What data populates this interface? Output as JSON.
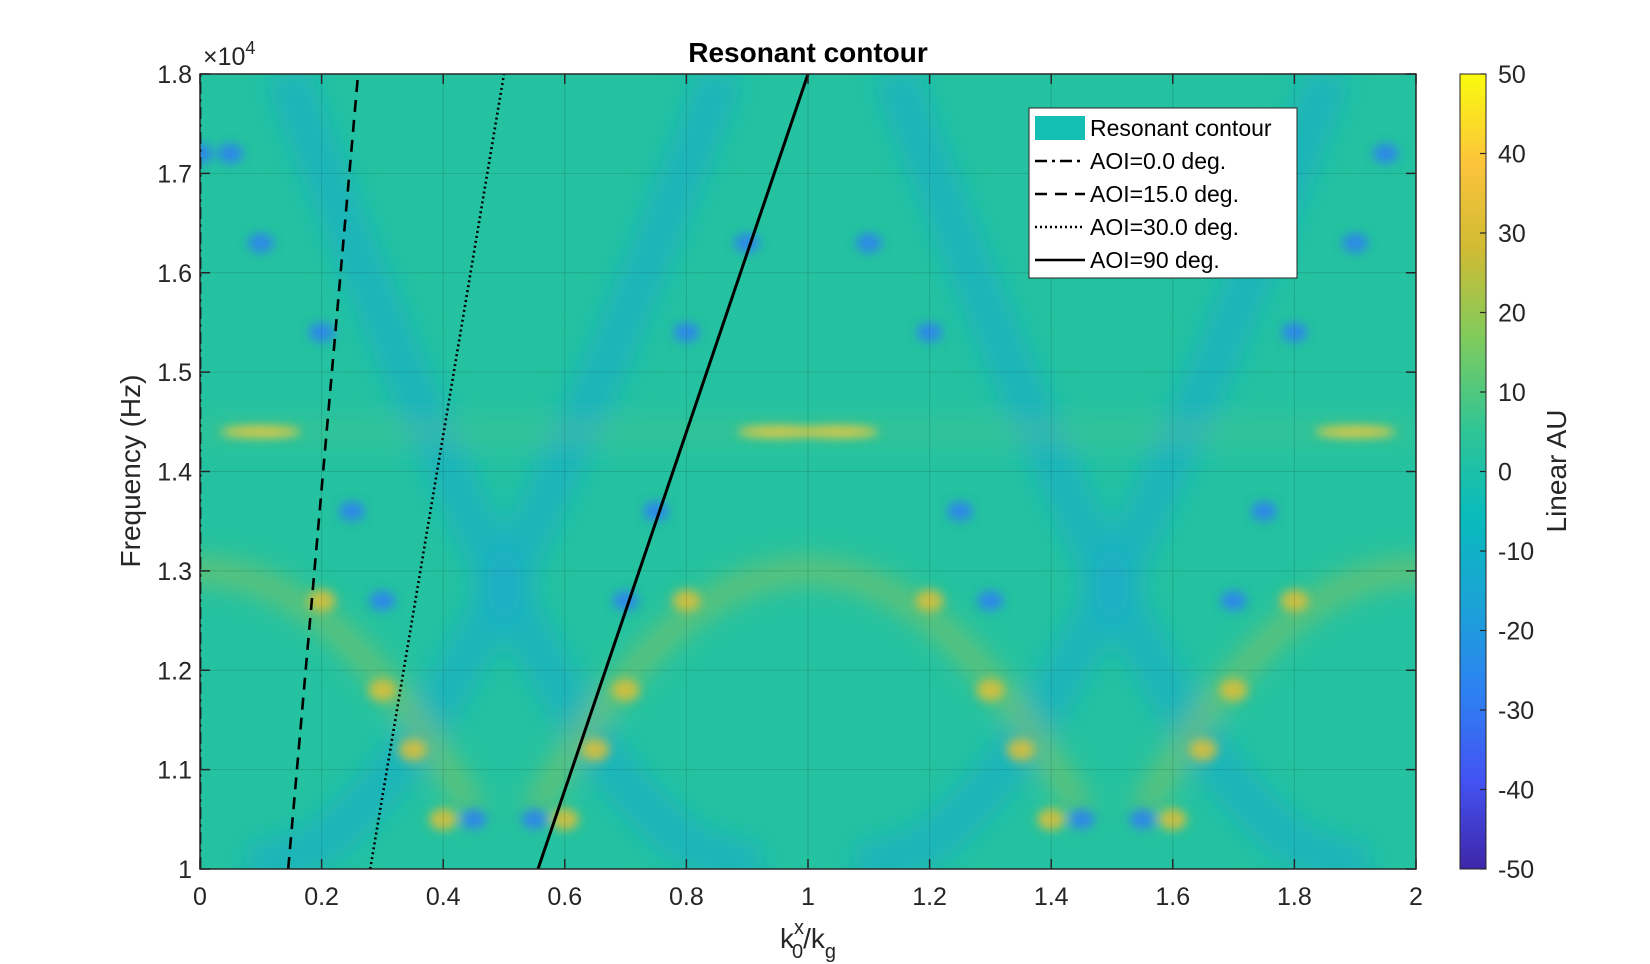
{
  "chart_data": {
    "type": "heatmap",
    "title": "Resonant contour",
    "xlabel": {
      "base": "k",
      "sub": "0",
      "sup": "x",
      "tail": "/k",
      "tail_sub": "g"
    },
    "ylabel": "Frequency (Hz)",
    "y_exponent_label": {
      "base": "×10",
      "sup": "4"
    },
    "xlim": [
      0,
      2
    ],
    "ylim": [
      10000,
      18000
    ],
    "x_ticks": [
      {
        "value": 0,
        "label": "0"
      },
      {
        "value": 0.2,
        "label": "0.2"
      },
      {
        "value": 0.4,
        "label": "0.4"
      },
      {
        "value": 0.6,
        "label": "0.6"
      },
      {
        "value": 0.8,
        "label": "0.8"
      },
      {
        "value": 1,
        "label": "1"
      },
      {
        "value": 1.2,
        "label": "1.2"
      },
      {
        "value": 1.4,
        "label": "1.4"
      },
      {
        "value": 1.6,
        "label": "1.6"
      },
      {
        "value": 1.8,
        "label": "1.8"
      },
      {
        "value": 2,
        "label": "2"
      }
    ],
    "y_ticks": [
      {
        "value": 10000,
        "label": "1"
      },
      {
        "value": 11000,
        "label": "1.1"
      },
      {
        "value": 12000,
        "label": "1.2"
      },
      {
        "value": 13000,
        "label": "1.3"
      },
      {
        "value": 14000,
        "label": "1.4"
      },
      {
        "value": 15000,
        "label": "1.5"
      },
      {
        "value": 16000,
        "label": "1.6"
      },
      {
        "value": 17000,
        "label": "1.7"
      },
      {
        "value": 18000,
        "label": "1.8"
      }
    ],
    "grid": true,
    "heatmap": {
      "background_value": 2,
      "band_period_x": 1,
      "band_cutoff_freq": 10000,
      "band_hump_peak_freq": 13000,
      "hot_line_freq": 14400
    },
    "colorbar": {
      "label": "Linear AU",
      "min": -50,
      "max": 50,
      "ticks": [
        {
          "value": 50,
          "label": "50"
        },
        {
          "value": 40,
          "label": "40"
        },
        {
          "value": 30,
          "label": "30"
        },
        {
          "value": 20,
          "label": "20"
        },
        {
          "value": 10,
          "label": "10"
        },
        {
          "value": 0,
          "label": "0"
        },
        {
          "value": -10,
          "label": "-10"
        },
        {
          "value": -20,
          "label": "-20"
        },
        {
          "value": -30,
          "label": "-30"
        },
        {
          "value": -40,
          "label": "-40"
        },
        {
          "value": -50,
          "label": "-50"
        }
      ],
      "colormap": [
        "#3e26a8",
        "#4353f2",
        "#2d81f2",
        "#1aa3d6",
        "#08bbbb",
        "#31c594",
        "#7fcb5d",
        "#cfbb33",
        "#fcc43b",
        "#f9fb0e"
      ]
    },
    "series": [
      {
        "name": "AOI=0.0 deg.",
        "dash": "dashdot",
        "points": [
          [
            0,
            10000
          ],
          [
            0,
            18000
          ]
        ]
      },
      {
        "name": "AOI=15.0 deg.",
        "dash": "dash",
        "points": [
          [
            0.145,
            10000
          ],
          [
            0.26,
            18000
          ]
        ]
      },
      {
        "name": "AOI=30.0 deg.",
        "dash": "dot",
        "points": [
          [
            0.28,
            10000
          ],
          [
            0.5,
            18000
          ]
        ]
      },
      {
        "name": "AOI=90 deg.",
        "dash": "solid",
        "points": [
          [
            0.556,
            10000
          ],
          [
            1.0,
            18000
          ]
        ]
      }
    ],
    "legend": {
      "placement": "top-right",
      "entries": [
        {
          "label": "Resonant contour",
          "style": "patch",
          "color": "#14c0b4"
        },
        {
          "label": "AOI=0.0 deg.",
          "style": "dashdot"
        },
        {
          "label": "AOI=15.0 deg.",
          "style": "dash"
        },
        {
          "label": "AOI=30.0 deg.",
          "style": "dot"
        },
        {
          "label": "AOI=90 deg.",
          "style": "solid"
        }
      ]
    }
  }
}
